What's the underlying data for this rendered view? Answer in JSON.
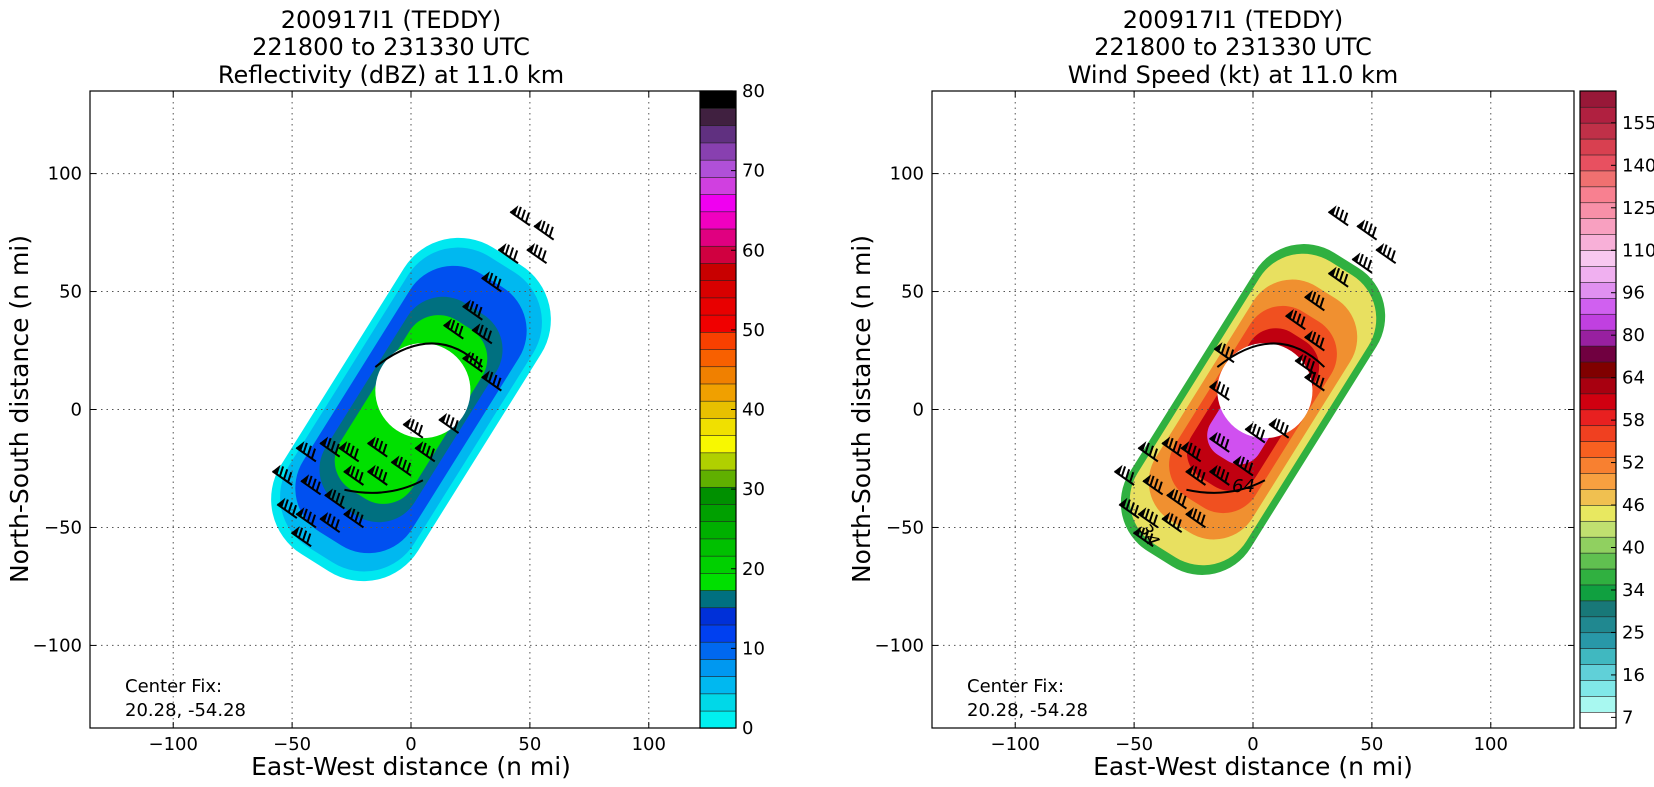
{
  "chart_data": [
    {
      "type": "heatmap",
      "title": "200917I1 (TEDDY)",
      "subtitle": "221800 to 231330 UTC",
      "field_label": "Reflectivity (dBZ) at 11.0 km",
      "xlabel": "East-West distance (n mi)",
      "ylabel": "North-South distance (n mi)",
      "xlim": [
        -135,
        135
      ],
      "ylim": [
        -135,
        135
      ],
      "xticks": [
        -100,
        -50,
        0,
        50,
        100
      ],
      "yticks": [
        -100,
        -50,
        0,
        50,
        100
      ],
      "grid": true,
      "annotation": [
        "Center Fix:",
        "20.28, -54.28"
      ],
      "colorbar": {
        "range": [
          0,
          80
        ],
        "tick_labels": [
          "0",
          "10",
          "20",
          "30",
          "40",
          "50",
          "60",
          "70",
          "80"
        ],
        "colors": [
          "#00f0f0",
          "#00d8e8",
          "#00b8f0",
          "#0098f0",
          "#0068f0",
          "#0040f0",
          "#0030d8",
          "#007080",
          "#00e000",
          "#00d000",
          "#00c000",
          "#00b000",
          "#00a000",
          "#009000",
          "#60b000",
          "#b0d000",
          "#f8f800",
          "#f0e000",
          "#e8c000",
          "#f0a000",
          "#f08000",
          "#f86000",
          "#f84000",
          "#f00000",
          "#e80000",
          "#d80000",
          "#c80000",
          "#d00040",
          "#e00080",
          "#f000c0",
          "#f000f0",
          "#d040e0",
          "#b050d8",
          "#8840b0",
          "#603080",
          "#402040",
          "#000000"
        ]
      },
      "fill_colors": {
        "inner": "#00e000",
        "mid": "#0050f0",
        "outer": "#00b8f0",
        "edge": "#00e8f0",
        "band": "#007080"
      },
      "barbs": [
        {
          "x": 50,
          "y": 78
        },
        {
          "x": 60,
          "y": 72
        },
        {
          "x": 57,
          "y": 62
        },
        {
          "x": 45,
          "y": 62
        },
        {
          "x": 38,
          "y": 50
        },
        {
          "x": 30,
          "y": 38
        },
        {
          "x": 22,
          "y": 30
        },
        {
          "x": 34,
          "y": 28
        },
        {
          "x": 30,
          "y": 16
        },
        {
          "x": 38,
          "y": 8
        },
        {
          "x": 20,
          "y": -10
        },
        {
          "x": 5,
          "y": -12
        },
        {
          "x": -10,
          "y": -20
        },
        {
          "x": -22,
          "y": -22
        },
        {
          "x": -30,
          "y": -20
        },
        {
          "x": -40,
          "y": -22
        },
        {
          "x": -50,
          "y": -32
        },
        {
          "x": -38,
          "y": -36
        },
        {
          "x": -28,
          "y": -42
        },
        {
          "x": -20,
          "y": -32
        },
        {
          "x": -48,
          "y": -46
        },
        {
          "x": -40,
          "y": -50
        },
        {
          "x": -30,
          "y": -52
        },
        {
          "x": -20,
          "y": -50
        },
        {
          "x": -42,
          "y": -58
        },
        {
          "x": -10,
          "y": -32
        },
        {
          "x": 0,
          "y": -28
        },
        {
          "x": 10,
          "y": -22
        }
      ]
    },
    {
      "type": "heatmap",
      "title": "200917I1 (TEDDY)",
      "subtitle": "221800 to 231330 UTC",
      "field_label": "Wind Speed (kt) at 11.0 km",
      "xlabel": "East-West distance (n mi)",
      "ylabel": "North-South distance (n mi)",
      "xlim": [
        -135,
        135
      ],
      "ylim": [
        -135,
        135
      ],
      "xticks": [
        -100,
        -50,
        0,
        50,
        100
      ],
      "yticks": [
        -100,
        -50,
        0,
        50,
        100
      ],
      "grid": true,
      "annotation": [
        "Center Fix:",
        "20.28, -54.28"
      ],
      "contour_labels": [
        "64",
        "34"
      ],
      "colorbar": {
        "tick_labels": [
          "7",
          "16",
          "25",
          "34",
          "40",
          "46",
          "52",
          "58",
          "64",
          "80",
          "96",
          "110",
          "125",
          "140",
          "155"
        ],
        "colors": [
          "#ffffff",
          "#a8f8f0",
          "#80e8e8",
          "#60d0d8",
          "#40b8c0",
          "#2898a8",
          "#208890",
          "#187878",
          "#10a040",
          "#30b040",
          "#60c050",
          "#90d060",
          "#c0e070",
          "#e8e860",
          "#f0c050",
          "#f8a040",
          "#f88030",
          "#f86020",
          "#f04020",
          "#e82020",
          "#d00010",
          "#a80010",
          "#800000",
          "#700040",
          "#9820a0",
          "#c040e0",
          "#d060f0",
          "#e090f0",
          "#f0b0f0",
          "#f8c8f0",
          "#f8b0d8",
          "#f8a0c0",
          "#f890a8",
          "#f88090",
          "#f07070",
          "#e85060",
          "#d84050",
          "#c03048",
          "#b02040",
          "#981838"
        ]
      },
      "fill_colors": {
        "inner": "#d050f0",
        "core": "#c00010",
        "mid": "#f05020",
        "orange": "#f09030",
        "outer": "#e8e060",
        "edge": "#30b040"
      },
      "barbs": [
        {
          "x": 40,
          "y": 78
        },
        {
          "x": 52,
          "y": 72
        },
        {
          "x": 60,
          "y": 62
        },
        {
          "x": 50,
          "y": 58
        },
        {
          "x": 40,
          "y": 52
        },
        {
          "x": 30,
          "y": 42
        },
        {
          "x": 22,
          "y": 34
        },
        {
          "x": 30,
          "y": 25
        },
        {
          "x": 26,
          "y": 15
        },
        {
          "x": 30,
          "y": 8
        },
        {
          "x": 15,
          "y": -12
        },
        {
          "x": 5,
          "y": -14
        },
        {
          "x": -10,
          "y": -18
        },
        {
          "x": -22,
          "y": -22
        },
        {
          "x": -30,
          "y": -20
        },
        {
          "x": -40,
          "y": -22
        },
        {
          "x": -50,
          "y": -32
        },
        {
          "x": -38,
          "y": -36
        },
        {
          "x": -28,
          "y": -42
        },
        {
          "x": -20,
          "y": -32
        },
        {
          "x": -48,
          "y": -46
        },
        {
          "x": -40,
          "y": -50
        },
        {
          "x": -30,
          "y": -52
        },
        {
          "x": -20,
          "y": -50
        },
        {
          "x": -42,
          "y": -58
        },
        {
          "x": -10,
          "y": -32
        },
        {
          "x": 0,
          "y": -28
        },
        {
          "x": -10,
          "y": 4
        },
        {
          "x": -8,
          "y": 20
        }
      ]
    }
  ]
}
